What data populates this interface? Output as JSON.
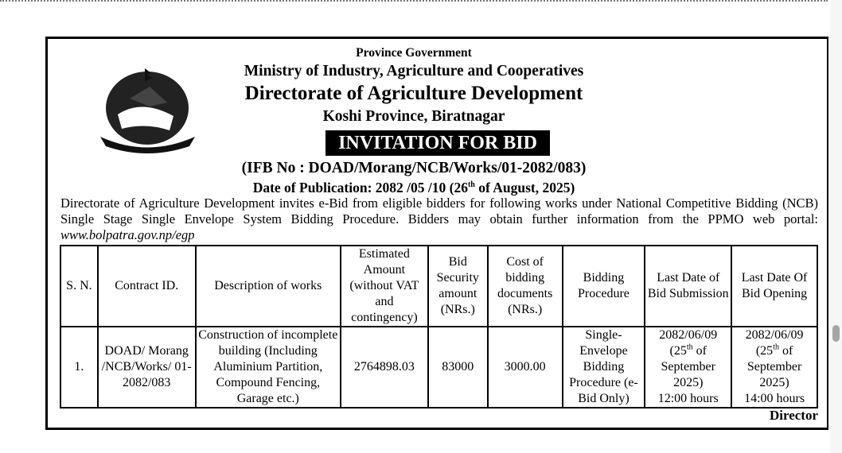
{
  "header": {
    "line1": "Province Government",
    "line2": "Ministry of Industry, Agriculture and Cooperatives",
    "line3": "Directorate of Agriculture Development",
    "line4": "Koshi Province, Biratnagar",
    "banner": "INVITATION FOR BID",
    "ifb": "(IFB No : DOAD/Morang/NCB/Works/01-2082/083)",
    "pub_prefix": "Date of Publication: 2082 /05 /10  (26",
    "pub_sup": "th",
    "pub_suffix": " of August, 2025)",
    "emblem": "Government of Nepal emblem"
  },
  "intro": {
    "line1": "Directorate of Agriculture Development invites e-Bid from eligible bidders for following works under National Competitive Bidding (NCB)",
    "line2": "Single Stage Single Envelope System Bidding Procedure. Bidders may obtain further information from the PPMO web portal:",
    "link": "www.bolpatra.gov.np/egp"
  },
  "table": {
    "headers": [
      "S. N.",
      "Contract ID.",
      "Description of works",
      "Estimated Amount (without VAT and contingency)",
      "Bid Security amount (NRs.)",
      "Cost of bidding documents (NRs.)",
      "Bidding Procedure",
      "Last Date of Bid Submission",
      "Last Date Of Bid Opening"
    ],
    "row": {
      "sn": "1.",
      "contract_id": "DOAD/ Morang /NCB/Works/ 01-2082/083",
      "description": "Construction of incomplete building (Including Aluminium Partition, Compound Fencing, Garage etc.)",
      "estimated": "2764898.03",
      "security": "83000",
      "cost": "3000.00",
      "procedure": "Single-Envelope Bidding Procedure (e-Bid Only)",
      "sub_date": "2082/06/09",
      "sub_day": "(25",
      "sub_sup": "th",
      "sub_rest": " of September 2025)",
      "sub_time": "12:00 hours",
      "open_date": "2082/06/09",
      "open_day": "(25",
      "open_sup": "th",
      "open_rest": " of September 2025)",
      "open_time": "14:00 hours"
    }
  },
  "signature": "Director"
}
